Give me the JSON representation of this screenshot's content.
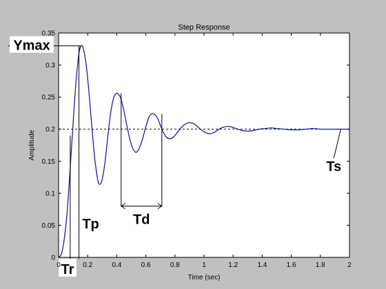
{
  "chart_data": {
    "type": "line",
    "title": "Step Response",
    "xlabel": "Time (sec)",
    "ylabel": "Amplitude",
    "xlim": [
      0,
      2
    ],
    "ylim": [
      0,
      0.35
    ],
    "xticks": [
      0,
      0.2,
      0.4,
      0.6,
      0.8,
      1,
      1.2,
      1.4,
      1.6,
      1.8,
      2
    ],
    "xtick_labels": [
      "0",
      "0.2",
      "0.4",
      "0.6",
      "0.8",
      "1",
      "1.2",
      "1.4",
      "1.6",
      "1.8",
      "2"
    ],
    "yticks": [
      0,
      0.05,
      0.1,
      0.15,
      0.2,
      0.25,
      0.3,
      0.35
    ],
    "ytick_labels": [
      "0",
      "0.05",
      "0.1",
      "0.15",
      "0.2",
      "0.25",
      "0.3",
      "0.35"
    ],
    "grid": false,
    "steady_state": 0.2,
    "series": [
      {
        "color": "#1a1aa8",
        "x": [
          0,
          0.02,
          0.04,
          0.06,
          0.08,
          0.1,
          0.12,
          0.14,
          0.155,
          0.17,
          0.19,
          0.21,
          0.23,
          0.25,
          0.27,
          0.285,
          0.3,
          0.32,
          0.34,
          0.36,
          0.38,
          0.4,
          0.42,
          0.43,
          0.45,
          0.47,
          0.49,
          0.51,
          0.53,
          0.55,
          0.575,
          0.6,
          0.62,
          0.64,
          0.66,
          0.68,
          0.7,
          0.72,
          0.74,
          0.76,
          0.78,
          0.8,
          0.82,
          0.85,
          0.88,
          0.91,
          0.94,
          0.97,
          1.0,
          1.03,
          1.06,
          1.09,
          1.12,
          1.15,
          1.18,
          1.22,
          1.26,
          1.3,
          1.34,
          1.38,
          1.42,
          1.46,
          1.5,
          1.55,
          1.6,
          1.65,
          1.7,
          1.75,
          1.8,
          1.85,
          1.9,
          1.95,
          2.0
        ],
        "y": [
          0,
          0.006,
          0.03,
          0.075,
          0.14,
          0.21,
          0.275,
          0.318,
          0.33,
          0.326,
          0.3,
          0.255,
          0.2,
          0.152,
          0.12,
          0.114,
          0.122,
          0.15,
          0.192,
          0.228,
          0.25,
          0.256,
          0.252,
          0.246,
          0.228,
          0.205,
          0.184,
          0.17,
          0.164,
          0.168,
          0.183,
          0.204,
          0.218,
          0.224,
          0.223,
          0.217,
          0.206,
          0.195,
          0.188,
          0.185,
          0.186,
          0.19,
          0.196,
          0.204,
          0.209,
          0.21,
          0.207,
          0.201,
          0.196,
          0.193,
          0.194,
          0.198,
          0.202,
          0.204,
          0.204,
          0.201,
          0.198,
          0.197,
          0.198,
          0.2,
          0.201,
          0.202,
          0.201,
          0.2,
          0.199,
          0.199,
          0.2,
          0.201,
          0.2,
          0.2,
          0.2,
          0.2,
          0.2
        ]
      }
    ],
    "annotations": [
      {
        "label": "Ymax",
        "value": 0.33,
        "x": 0.155
      },
      {
        "label": "Tr",
        "x": 0.08
      },
      {
        "label": "Tp",
        "x": 0.14
      },
      {
        "label": "Td",
        "x_start": 0.43,
        "x_end": 0.71,
        "y": 0.08
      },
      {
        "label": "Ts",
        "x": 1.94
      }
    ]
  }
}
